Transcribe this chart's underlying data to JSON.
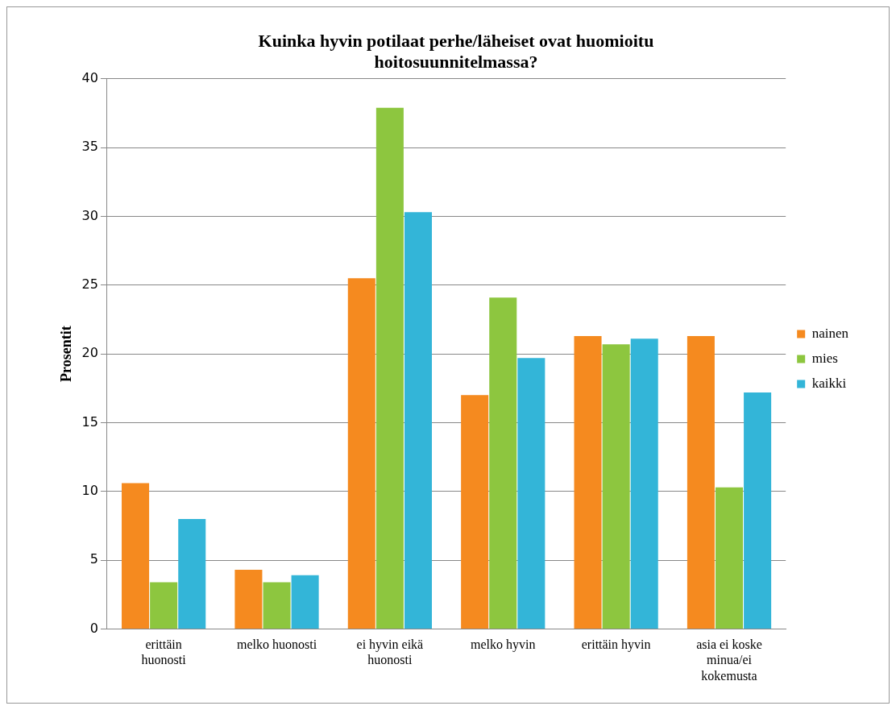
{
  "chart_data": {
    "type": "bar",
    "title": "Kuinka hyvin potilaat perhe/läheiset ovat huomioitu hoitosuunnitelmassa?",
    "ylabel": "Prosentit",
    "categories": [
      "erittäin huonosti",
      "melko huonosti",
      "ei hyvin eikä huonosti",
      "melko hyvin",
      "erittäin hyvin",
      "asia ei koske minua/ei kokemusta"
    ],
    "series": [
      {
        "name": "nainen",
        "color": "#f58a1f",
        "values": [
          10.6,
          4.3,
          25.5,
          17.0,
          21.3,
          21.3
        ]
      },
      {
        "name": "mies",
        "color": "#8dc63f",
        "values": [
          3.4,
          3.4,
          37.9,
          24.1,
          20.7,
          10.3
        ]
      },
      {
        "name": "kaikki",
        "color": "#33b5d8",
        "values": [
          8.0,
          3.9,
          30.3,
          19.7,
          21.1,
          17.2
        ]
      }
    ],
    "ylim": [
      0,
      40
    ],
    "yticks": [
      0,
      5,
      10,
      15,
      20,
      25,
      30,
      35,
      40
    ],
    "grid": "y",
    "legend": "right"
  }
}
